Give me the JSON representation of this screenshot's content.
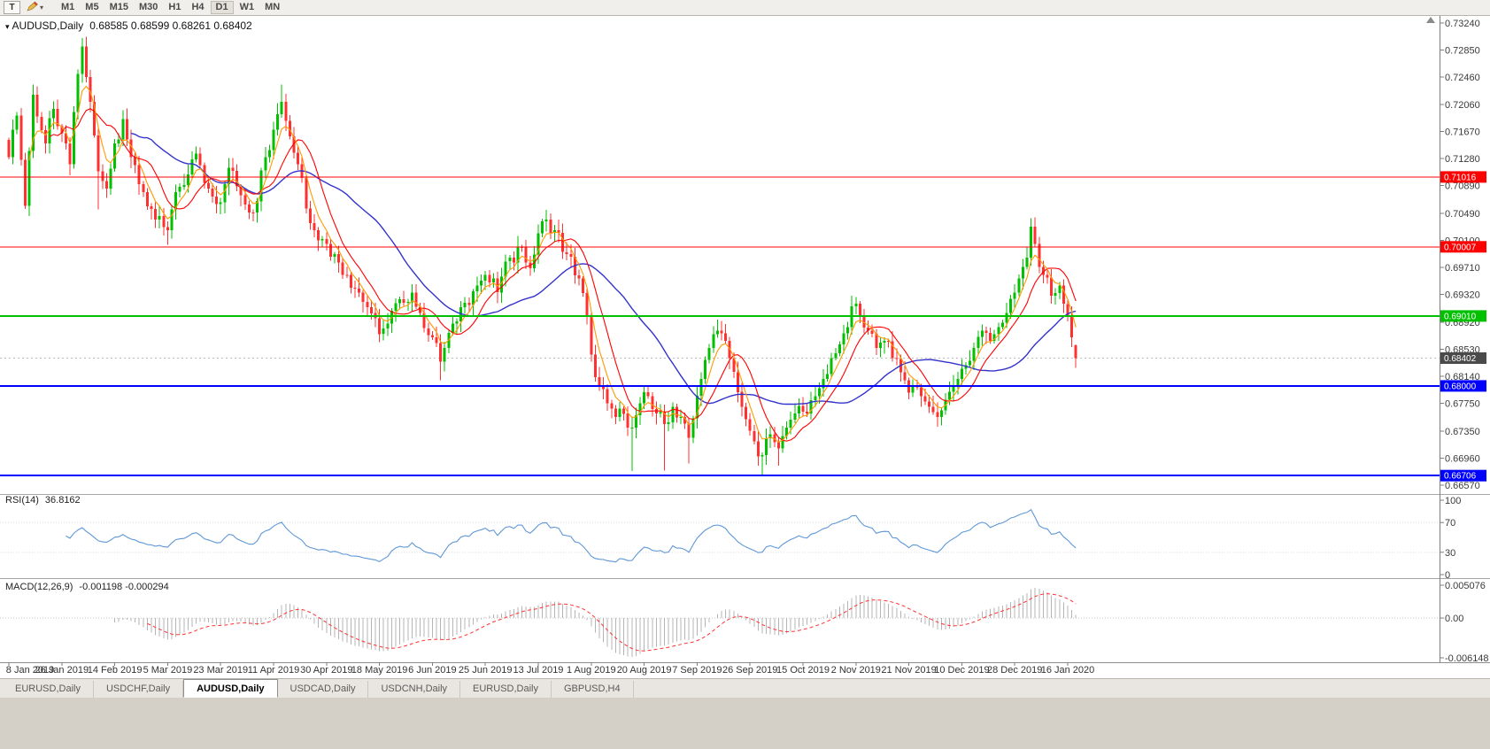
{
  "toolbar": {
    "template_button_label": "T",
    "timeframes": [
      "M1",
      "M5",
      "M15",
      "M30",
      "H1",
      "H4",
      "D1",
      "W1",
      "MN"
    ],
    "active_timeframe": "D1"
  },
  "chart": {
    "header_symbol": "AUDUSD,Daily",
    "header_ohlc": "0.68585 0.68599 0.68261 0.68402"
  },
  "tabs": {
    "items": [
      {
        "label": "EURUSD,Daily",
        "active": false
      },
      {
        "label": "USDCHF,Daily",
        "active": false
      },
      {
        "label": "AUDUSD,Daily",
        "active": true
      },
      {
        "label": "USDCAD,Daily",
        "active": false
      },
      {
        "label": "USDCNH,Daily",
        "active": false
      },
      {
        "label": "EURUSD,Daily",
        "active": false
      },
      {
        "label": "GBPUSD,H4",
        "active": false
      }
    ]
  },
  "chart_data": {
    "type": "candlestick",
    "symbol": "AUDUSD",
    "timeframe": "Daily",
    "current_bar": {
      "open": 0.68585,
      "high": 0.68599,
      "low": 0.68261,
      "close": 0.68402
    },
    "ylim": [
      0.6644,
      0.7334
    ],
    "y_axis_labels": [
      "0.73240",
      "0.72850",
      "0.72460",
      "0.72060",
      "0.71670",
      "0.71280",
      "0.70890",
      "0.70490",
      "0.70100",
      "0.69710",
      "0.69320",
      "0.68920",
      "0.68530",
      "0.68140",
      "0.67750",
      "0.67350",
      "0.66960",
      "0.66570"
    ],
    "x_labels": [
      "8 Jan 2019",
      "26 Jan 2019",
      "14 Feb 2019",
      "5 Mar 2019",
      "23 Mar 2019",
      "11 Apr 2019",
      "30 Apr 2019",
      "18 May 2019",
      "6 Jun 2019",
      "25 Jun 2019",
      "13 Jul 2019",
      "1 Aug 2019",
      "20 Aug 2019",
      "7 Sep 2019",
      "26 Sep 2019",
      "15 Oct 2019",
      "2 Nov 2019",
      "21 Nov 2019",
      "10 Dec 2019",
      "28 Dec 2019",
      "16 Jan 2020"
    ],
    "bars_total": 263,
    "bars_per_label": 13,
    "levels": [
      {
        "price": 0.71016,
        "label": "0.71016",
        "color": "#ff0000",
        "width": 1
      },
      {
        "price": 0.70007,
        "label": "0.70007",
        "color": "#ff0000",
        "width": 1
      },
      {
        "price": 0.6901,
        "label": "0.69010",
        "color": "#00c000",
        "width": 2
      },
      {
        "price": 0.68,
        "label": "0.68000",
        "color": "#0000ff",
        "width": 2
      },
      {
        "price": 0.66706,
        "label": "0.66706",
        "color": "#0000ff",
        "width": 2
      }
    ],
    "current_price": {
      "value": 0.68402,
      "label": "0.68402",
      "tag_color": "#4a4a4a"
    },
    "colors": {
      "up": "#00c000",
      "down": "#ff3030",
      "background": "#ffffff"
    },
    "moving_averages": [
      {
        "period": 30,
        "type": "sma",
        "color": "#3333cc",
        "width": 1.4,
        "name": "slow-ma"
      },
      {
        "period": 10,
        "type": "sma",
        "color": "#ff0000",
        "width": 1.1,
        "name": "medium-ma"
      },
      {
        "period": 5,
        "type": "ema",
        "color": "#ff9900",
        "width": 1.1,
        "name": "fast-ma"
      }
    ],
    "indicators": {
      "rsi": {
        "label": "RSI(14)",
        "period": 14,
        "current_value": "36.8162",
        "scale_labels": [
          "100",
          "70",
          "30",
          "0"
        ],
        "guide_levels": [
          70,
          30
        ],
        "color": "#5e97d8"
      },
      "macd": {
        "label": "MACD(12,26,9)",
        "current_values": "-0.001198 -0.000294",
        "macd_value": -0.001198,
        "signal_value": -0.000294,
        "scale_labels": [
          "0.005076",
          "0.00",
          "-0.006148"
        ],
        "hist_color": "#b4b4b4",
        "signal_color": "#ff3333"
      }
    },
    "close_anchors": [
      [
        0,
        0.713
      ],
      [
        2,
        0.719
      ],
      [
        4,
        0.706
      ],
      [
        6,
        0.722
      ],
      [
        9,
        0.715
      ],
      [
        11,
        0.72
      ],
      [
        13,
        0.7165
      ],
      [
        15,
        0.712
      ],
      [
        17,
        0.725
      ],
      [
        18,
        0.729
      ],
      [
        20,
        0.721
      ],
      [
        22,
        0.711
      ],
      [
        24,
        0.7085
      ],
      [
        26,
        0.715
      ],
      [
        28,
        0.7185
      ],
      [
        30,
        0.713
      ],
      [
        33,
        0.708
      ],
      [
        36,
        0.704
      ],
      [
        39,
        0.7025
      ],
      [
        41,
        0.708
      ],
      [
        44,
        0.7105
      ],
      [
        46,
        0.7135
      ],
      [
        49,
        0.7085
      ],
      [
        52,
        0.7065
      ],
      [
        54,
        0.7115
      ],
      [
        57,
        0.7075
      ],
      [
        60,
        0.705
      ],
      [
        63,
        0.713
      ],
      [
        65,
        0.717
      ],
      [
        67,
        0.721
      ],
      [
        69,
        0.716
      ],
      [
        72,
        0.71
      ],
      [
        74,
        0.7035
      ],
      [
        76,
        0.701
      ],
      [
        78,
        0.7005
      ],
      [
        80,
        0.699
      ],
      [
        83,
        0.696
      ],
      [
        86,
        0.6935
      ],
      [
        89,
        0.6905
      ],
      [
        91,
        0.6875
      ],
      [
        93,
        0.689
      ],
      [
        96,
        0.6925
      ],
      [
        99,
        0.6935
      ],
      [
        101,
        0.6905
      ],
      [
        104,
        0.687
      ],
      [
        106,
        0.6835
      ],
      [
        109,
        0.689
      ],
      [
        112,
        0.692
      ],
      [
        115,
        0.6945
      ],
      [
        117,
        0.696
      ],
      [
        120,
        0.6935
      ],
      [
        123,
        0.6985
      ],
      [
        126,
        0.7
      ],
      [
        128,
        0.697
      ],
      [
        130,
        0.702
      ],
      [
        132,
        0.704
      ],
      [
        134,
        0.7025
      ],
      [
        137,
        0.699
      ],
      [
        140,
        0.6955
      ],
      [
        142,
        0.69
      ],
      [
        143,
        0.6845
      ],
      [
        145,
        0.68
      ],
      [
        147,
        0.6775
      ],
      [
        149,
        0.6755
      ],
      [
        151,
        0.676
      ],
      [
        153,
        0.674
      ],
      [
        155,
        0.6775
      ],
      [
        157,
        0.6785
      ],
      [
        159,
        0.676
      ],
      [
        161,
        0.6745
      ],
      [
        163,
        0.677
      ],
      [
        165,
        0.6755
      ],
      [
        167,
        0.6725
      ],
      [
        170,
        0.681
      ],
      [
        172,
        0.6855
      ],
      [
        174,
        0.688
      ],
      [
        176,
        0.6865
      ],
      [
        178,
        0.682
      ],
      [
        180,
        0.677
      ],
      [
        182,
        0.6735
      ],
      [
        183,
        0.672
      ],
      [
        185,
        0.67
      ],
      [
        187,
        0.673
      ],
      [
        189,
        0.671
      ],
      [
        191,
        0.674
      ],
      [
        193,
        0.676
      ],
      [
        196,
        0.676
      ],
      [
        198,
        0.6785
      ],
      [
        200,
        0.681
      ],
      [
        202,
        0.684
      ],
      [
        204,
        0.686
      ],
      [
        206,
        0.6885
      ],
      [
        207,
        0.6915
      ],
      [
        209,
        0.69
      ],
      [
        211,
        0.688
      ],
      [
        213,
        0.6855
      ],
      [
        215,
        0.6865
      ],
      [
        217,
        0.684
      ],
      [
        219,
        0.682
      ],
      [
        221,
        0.679
      ],
      [
        222,
        0.68
      ],
      [
        224,
        0.6785
      ],
      [
        226,
        0.677
      ],
      [
        228,
        0.6755
      ],
      [
        230,
        0.678
      ],
      [
        232,
        0.68
      ],
      [
        234,
        0.6825
      ],
      [
        235,
        0.683
      ],
      [
        237,
        0.6855
      ],
      [
        239,
        0.688
      ],
      [
        241,
        0.6865
      ],
      [
        243,
        0.6885
      ],
      [
        245,
        0.6905
      ],
      [
        247,
        0.6935
      ],
      [
        248,
        0.6955
      ],
      [
        250,
        0.6985
      ],
      [
        251,
        0.703
      ],
      [
        252,
        0.7005
      ],
      [
        254,
        0.696
      ],
      [
        256,
        0.693
      ],
      [
        258,
        0.6945
      ],
      [
        260,
        0.69
      ],
      [
        261,
        0.687
      ],
      [
        262,
        0.68402
      ]
    ],
    "high_overrides": [
      [
        6,
        0.7235
      ],
      [
        18,
        0.7297
      ],
      [
        67,
        0.7235
      ],
      [
        132,
        0.7052
      ],
      [
        207,
        0.693
      ],
      [
        251,
        0.7042
      ]
    ],
    "low_overrides": [
      [
        22,
        0.7055
      ],
      [
        39,
        0.7004
      ],
      [
        91,
        0.6864
      ],
      [
        106,
        0.6808
      ],
      [
        149,
        0.6745
      ],
      [
        153,
        0.6677
      ],
      [
        161,
        0.6678
      ],
      [
        167,
        0.6688
      ],
      [
        185,
        0.6671
      ],
      [
        189,
        0.6685
      ],
      [
        228,
        0.6752
      ]
    ]
  }
}
